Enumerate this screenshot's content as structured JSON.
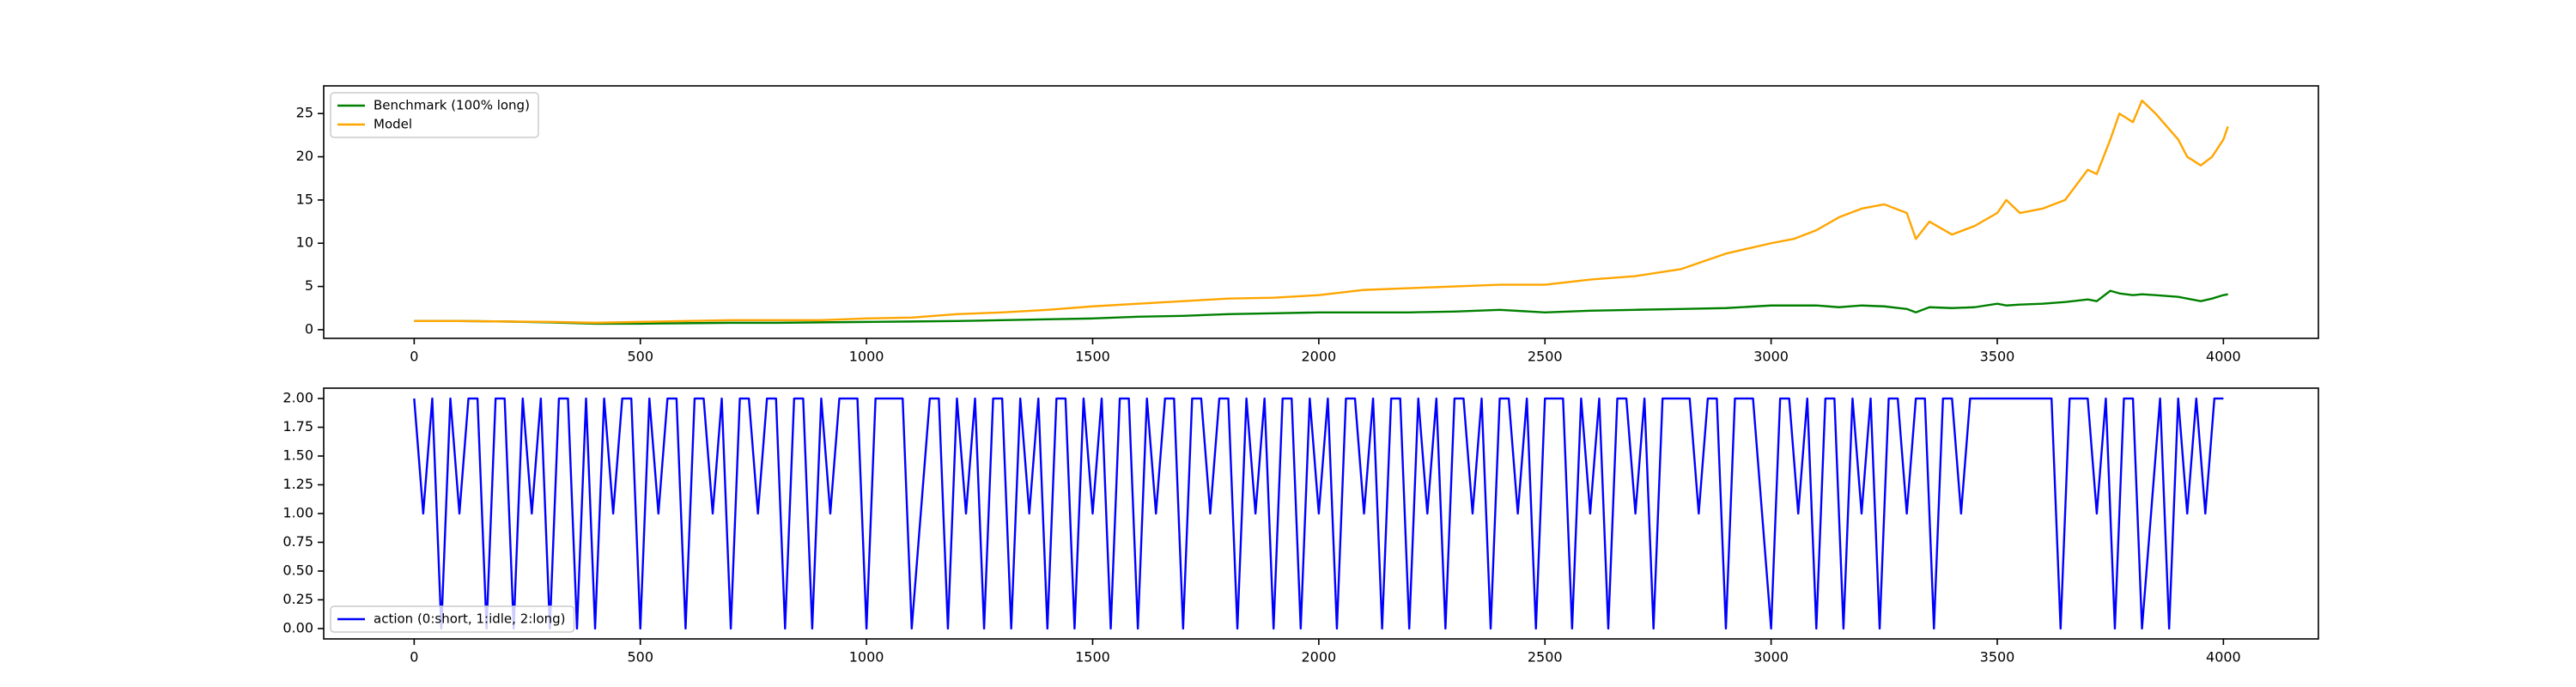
{
  "chart_data": [
    {
      "type": "line",
      "x": [
        0,
        100,
        200,
        300,
        400,
        500,
        600,
        700,
        800,
        900,
        1000,
        1100,
        1200,
        1300,
        1400,
        1500,
        1600,
        1700,
        1800,
        1900,
        2000,
        2100,
        2200,
        2300,
        2400,
        2500,
        2600,
        2700,
        2800,
        2900,
        3000,
        3050,
        3100,
        3150,
        3200,
        3250,
        3300,
        3320,
        3350,
        3400,
        3450,
        3500,
        3520,
        3550,
        3600,
        3650,
        3700,
        3720,
        3750,
        3770,
        3800,
        3820,
        3850,
        3900,
        3920,
        3950,
        3975,
        4000,
        4010
      ],
      "series": [
        {
          "name": "Benchmark (100% long)",
          "color": "#008000",
          "values": [
            1.0,
            1.0,
            0.95,
            0.85,
            0.7,
            0.7,
            0.75,
            0.8,
            0.8,
            0.85,
            0.9,
            0.95,
            1.0,
            1.1,
            1.2,
            1.3,
            1.5,
            1.6,
            1.8,
            1.9,
            2.0,
            2.0,
            2.0,
            2.1,
            2.3,
            2.0,
            2.2,
            2.3,
            2.4,
            2.5,
            2.8,
            2.8,
            2.8,
            2.6,
            2.8,
            2.7,
            2.4,
            2.0,
            2.6,
            2.5,
            2.6,
            3.0,
            2.8,
            2.9,
            3.0,
            3.2,
            3.5,
            3.3,
            4.5,
            4.2,
            4.0,
            4.1,
            4.0,
            3.8,
            3.6,
            3.3,
            3.6,
            4.0,
            4.1
          ]
        },
        {
          "name": "Model",
          "color": "#ffa500",
          "values": [
            1.0,
            1.0,
            0.95,
            0.9,
            0.8,
            0.9,
            1.0,
            1.1,
            1.1,
            1.1,
            1.3,
            1.4,
            1.8,
            2.0,
            2.3,
            2.7,
            3.0,
            3.3,
            3.6,
            3.7,
            4.0,
            4.6,
            4.8,
            5.0,
            5.2,
            5.2,
            5.8,
            6.2,
            7.0,
            8.8,
            10.0,
            10.5,
            11.5,
            13.0,
            14.0,
            14.5,
            13.5,
            10.5,
            12.5,
            11.0,
            12.0,
            13.5,
            15.0,
            13.5,
            14.0,
            15.0,
            18.5,
            18.0,
            22.0,
            25.0,
            24.0,
            26.5,
            25.0,
            22.0,
            20.0,
            19.0,
            20.0,
            22.0,
            23.5
          ]
        }
      ],
      "xlim": [
        -200,
        4210
      ],
      "ylim": [
        -1,
        28.2
      ],
      "xticks": [
        0,
        500,
        1000,
        1500,
        2000,
        2500,
        3000,
        3500,
        4000
      ],
      "yticks": [
        0,
        5,
        10,
        15,
        20,
        25
      ],
      "legend": "upper left"
    },
    {
      "type": "line",
      "x": [
        0,
        20,
        40,
        60,
        80,
        100,
        120,
        140,
        160,
        180,
        200,
        220,
        240,
        260,
        280,
        300,
        320,
        340,
        360,
        380,
        400,
        420,
        440,
        460,
        480,
        500,
        520,
        540,
        560,
        580,
        600,
        620,
        640,
        660,
        680,
        700,
        720,
        740,
        760,
        780,
        800,
        820,
        840,
        860,
        880,
        900,
        920,
        940,
        960,
        980,
        1000,
        1020,
        1040,
        1060,
        1080,
        1100,
        1120,
        1140,
        1160,
        1180,
        1200,
        1220,
        1240,
        1260,
        1280,
        1300,
        1320,
        1340,
        1360,
        1380,
        1400,
        1420,
        1440,
        1460,
        1480,
        1500,
        1520,
        1540,
        1560,
        1580,
        1600,
        1620,
        1640,
        1660,
        1680,
        1700,
        1720,
        1740,
        1760,
        1780,
        1800,
        1820,
        1840,
        1860,
        1880,
        1900,
        1920,
        1940,
        1960,
        1980,
        2000,
        2020,
        2040,
        2060,
        2080,
        2100,
        2120,
        2140,
        2160,
        2180,
        2200,
        2220,
        2240,
        2260,
        2280,
        2300,
        2320,
        2340,
        2360,
        2380,
        2400,
        2420,
        2440,
        2460,
        2480,
        2500,
        2520,
        2540,
        2560,
        2580,
        2600,
        2620,
        2640,
        2660,
        2680,
        2700,
        2720,
        2740,
        2760,
        2780,
        2800,
        2820,
        2840,
        2860,
        2880,
        2900,
        2920,
        2940,
        2960,
        2980,
        3000,
        3020,
        3040,
        3060,
        3080,
        3100,
        3120,
        3140,
        3160,
        3180,
        3200,
        3220,
        3240,
        3260,
        3280,
        3300,
        3320,
        3340,
        3360,
        3380,
        3400,
        3420,
        3440,
        3460,
        3480,
        3500,
        3520,
        3540,
        3560,
        3580,
        3600,
        3620,
        3640,
        3660,
        3680,
        3700,
        3720,
        3740,
        3760,
        3780,
        3800,
        3820,
        3840,
        3860,
        3880,
        3900,
        3920,
        3940,
        3960,
        3980,
        4000
      ],
      "series": [
        {
          "name": "action (0:short, 1:idle, 2:long)",
          "color": "#0000ff",
          "values": [
            2,
            1,
            2,
            0,
            2,
            1,
            2,
            2,
            0,
            2,
            2,
            0,
            2,
            1,
            2,
            0,
            2,
            2,
            0,
            2,
            0,
            2,
            1,
            2,
            2,
            0,
            2,
            1,
            2,
            2,
            0,
            2,
            2,
            1,
            2,
            0,
            2,
            2,
            1,
            2,
            2,
            0,
            2,
            2,
            0,
            2,
            1,
            2,
            2,
            2,
            0,
            2,
            2,
            2,
            2,
            0,
            1,
            2,
            2,
            0,
            2,
            1,
            2,
            0,
            2,
            2,
            0,
            2,
            1,
            2,
            0,
            2,
            2,
            0,
            2,
            1,
            2,
            0,
            2,
            2,
            0,
            2,
            1,
            2,
            2,
            0,
            2,
            2,
            1,
            2,
            2,
            0,
            2,
            1,
            2,
            0,
            2,
            2,
            0,
            2,
            1,
            2,
            0,
            2,
            2,
            1,
            2,
            0,
            2,
            2,
            0,
            2,
            1,
            2,
            0,
            2,
            2,
            1,
            2,
            0,
            2,
            2,
            1,
            2,
            0,
            2,
            2,
            2,
            0,
            2,
            1,
            2,
            0,
            2,
            2,
            1,
            2,
            0,
            2,
            2,
            2,
            2,
            1,
            2,
            2,
            0,
            2,
            2,
            2,
            1,
            0,
            2,
            2,
            1,
            2,
            0,
            2,
            2,
            0,
            2,
            1,
            2,
            0,
            2,
            2,
            1,
            2,
            2,
            0,
            2,
            2,
            1,
            2,
            2,
            2,
            2,
            2,
            2,
            2,
            2,
            2,
            2,
            0,
            2,
            2,
            2,
            1,
            2,
            0,
            2,
            2,
            0,
            1,
            2,
            0,
            2,
            1,
            2,
            1,
            2,
            2
          ]
        }
      ],
      "xlim": [
        -200,
        4210
      ],
      "ylim": [
        -0.09,
        2.09
      ],
      "xticks": [
        0,
        500,
        1000,
        1500,
        2000,
        2500,
        3000,
        3500,
        4000
      ],
      "yticks": [
        {
          "value": 0,
          "label": "0.00"
        },
        {
          "value": 0.25,
          "label": "0.25"
        },
        {
          "value": 0.5,
          "label": "0.50"
        },
        {
          "value": 0.75,
          "label": "0.75"
        },
        {
          "value": 1,
          "label": "1.00"
        },
        {
          "value": 1.25,
          "label": "1.25"
        },
        {
          "value": 1.5,
          "label": "1.50"
        },
        {
          "value": 1.75,
          "label": "1.75"
        },
        {
          "value": 2,
          "label": "2.00"
        }
      ],
      "legend": "lower left"
    }
  ]
}
